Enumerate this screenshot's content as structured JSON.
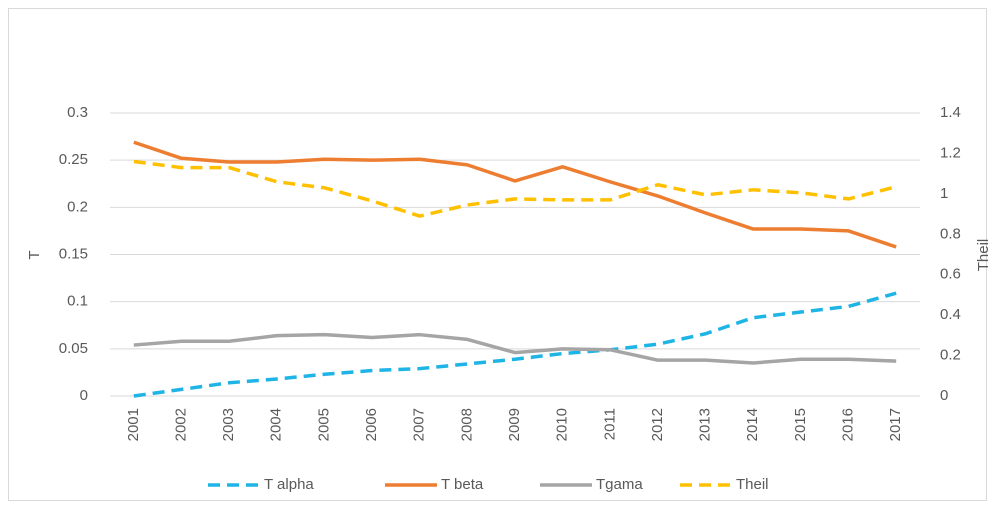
{
  "chart_data": {
    "type": "line",
    "categories": [
      "2001",
      "2002",
      "2003",
      "2004",
      "2005",
      "2006",
      "2007",
      "2008",
      "2009",
      "2010",
      "2011",
      "2012",
      "2013",
      "2014",
      "2015",
      "2016",
      "2017"
    ],
    "ylabel": "T",
    "y2label": "Theil",
    "ylim": [
      0,
      0.3
    ],
    "yticks": [
      0,
      0.05,
      0.1,
      0.15,
      0.2,
      0.25,
      0.3
    ],
    "y2lim": [
      0,
      1.4
    ],
    "y2ticks": [
      0,
      0.2,
      0.4,
      0.6,
      0.8,
      1,
      1.2,
      1.4
    ],
    "grid": true,
    "legend": "bottom",
    "series": [
      {
        "name": "T alpha",
        "color": "#1fb4e6",
        "dashed": true,
        "values": [
          0,
          0.007,
          0.014,
          0.018,
          0.023,
          0.027,
          0.029,
          0.034,
          0.039,
          0.045,
          0.049,
          0.055,
          0.066,
          0.083,
          0.089,
          0.095,
          0.109
        ]
      },
      {
        "name": "T beta",
        "color": "#ed7d31",
        "dashed": false,
        "values": [
          0.269,
          0.252,
          0.248,
          0.248,
          0.251,
          0.25,
          0.251,
          0.245,
          0.228,
          0.243,
          0.227,
          0.212,
          0.194,
          0.177,
          0.177,
          0.175,
          0.158
        ]
      },
      {
        "name": "Tgama",
        "color": "#a5a5a5",
        "dashed": false,
        "values": [
          0.054,
          0.058,
          0.058,
          0.064,
          0.065,
          0.062,
          0.065,
          0.06,
          0.046,
          0.05,
          0.049,
          0.038,
          0.038,
          0.035,
          0.039,
          0.039,
          0.037
        ]
      },
      {
        "name": "Theil",
        "color": "#ffc000",
        "dashed": true,
        "axis": "y2",
        "values": [
          1.16,
          1.13,
          1.13,
          1.06,
          1.03,
          0.965,
          0.89,
          0.945,
          0.975,
          0.97,
          0.97,
          1.045,
          0.995,
          1.02,
          1.005,
          0.975,
          1.035
        ]
      }
    ]
  }
}
